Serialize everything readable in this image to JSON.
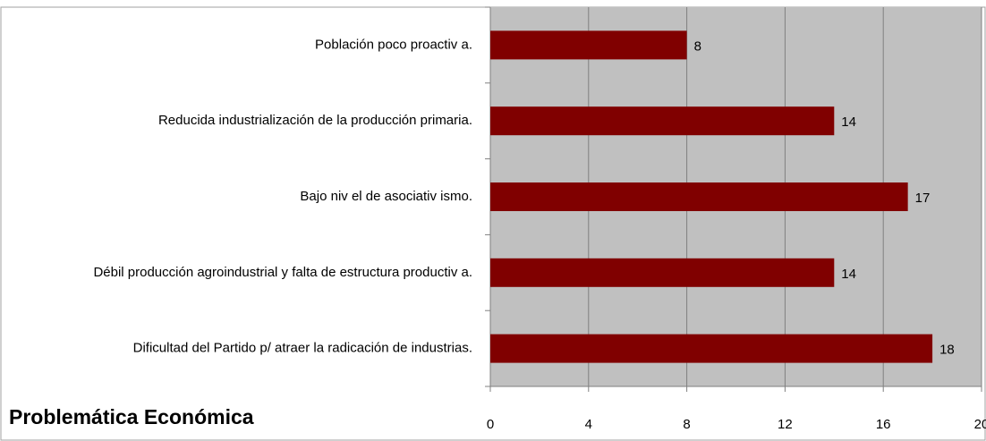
{
  "chart_data": {
    "type": "bar",
    "orientation": "horizontal",
    "title": "Problemática Económica",
    "categories": [
      "Población poco proactiv a.",
      "Reducida industrialización de la producción primaria.",
      "Bajo niv el de asociativ ismo.",
      "Débil producción agroindustrial y  falta de estructura productiv a.",
      "Dificultad del Partido p/ atraer la radicación de industrias."
    ],
    "values": [
      8,
      14,
      17,
      14,
      18
    ],
    "color": "#800000",
    "xlim": [
      0,
      20
    ],
    "xticks": [
      0,
      4,
      8,
      12,
      16,
      20
    ],
    "grid": true
  }
}
